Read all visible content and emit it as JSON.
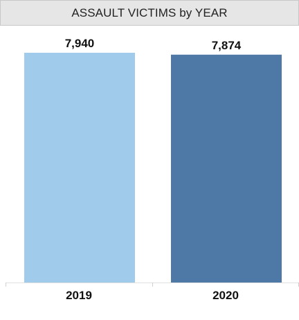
{
  "chart_data": {
    "type": "bar",
    "title": "ASSAULT VICTIMS by YEAR",
    "categories": [
      "2019",
      "2020"
    ],
    "values": [
      7940,
      7874
    ],
    "value_labels": [
      "7,940",
      "7,874"
    ],
    "colors": [
      "#a0cbea",
      "#4e79a7"
    ],
    "xlabel": "",
    "ylabel": "",
    "grid": false
  }
}
